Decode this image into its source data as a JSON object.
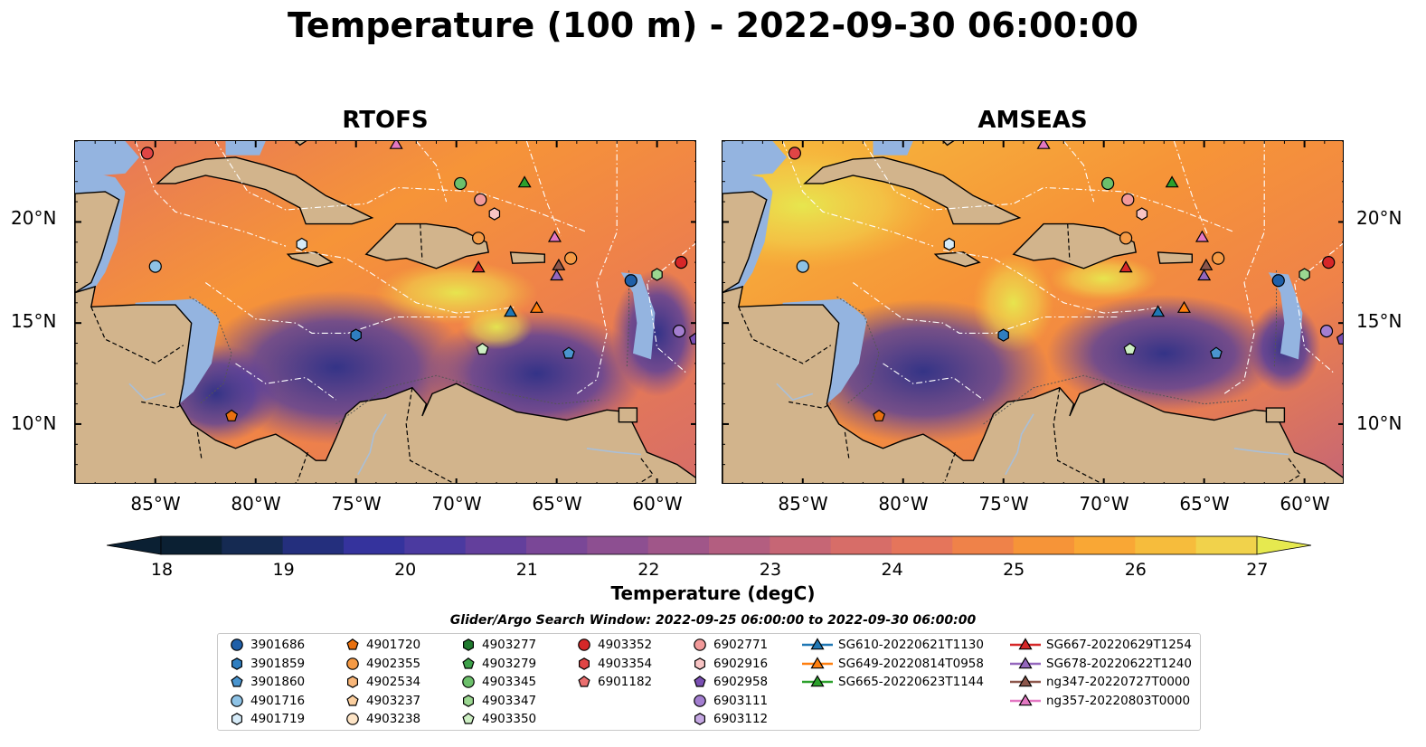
{
  "title": "Temperature (100 m) - 2022-09-30 06:00:00",
  "panels": [
    {
      "title": "RTOFS"
    },
    {
      "title": "AMSEAS"
    }
  ],
  "lat_labels": [
    "20°N",
    "15°N",
    "10°N"
  ],
  "lon_labels": [
    "85°W",
    "80°W",
    "75°W",
    "70°W",
    "65°W",
    "60°W"
  ],
  "map_extent": {
    "lon": [
      -89,
      -58
    ],
    "lat": [
      7,
      24
    ]
  },
  "colorbar": {
    "label": "Temperature (degC)",
    "ticks": [
      "18",
      "19",
      "20",
      "21",
      "22",
      "23",
      "24",
      "25",
      "26",
      "27"
    ],
    "range": [
      18,
      27
    ],
    "colors": [
      "#0b2033",
      "#152a52",
      "#242f7d",
      "#35339d",
      "#4b3aa0",
      "#633f9c",
      "#7a4797",
      "#8d4f91",
      "#a05689",
      "#b35e80",
      "#c66675",
      "#d76d68",
      "#e5755b",
      "#ef8249",
      "#f69438",
      "#f9a735",
      "#f6bc3c",
      "#f1d24b",
      "#e6e94f"
    ]
  },
  "search_window": "Glider/Argo Search Window: 2022-09-25 06:00:00 to 2022-09-30 06:00:00",
  "legend": [
    {
      "label": "3901686",
      "marker": "circle",
      "color": "#1f5fa8"
    },
    {
      "label": "3901859",
      "marker": "hexagon",
      "color": "#2f7ec0"
    },
    {
      "label": "3901860",
      "marker": "pentagon",
      "color": "#4a95cf"
    },
    {
      "label": "4901716",
      "marker": "circle",
      "color": "#8ec3e6"
    },
    {
      "label": "4901719",
      "marker": "hexagon",
      "color": "#d6ebf8"
    },
    {
      "label": "4901720",
      "marker": "pentagon",
      "color": "#e8700f"
    },
    {
      "label": "4902355",
      "marker": "circle",
      "color": "#f59a45"
    },
    {
      "label": "4902534",
      "marker": "hexagon",
      "color": "#f8b679"
    },
    {
      "label": "4903237",
      "marker": "pentagon",
      "color": "#fbcf9f"
    },
    {
      "label": "4903238",
      "marker": "circle",
      "color": "#fde4c6"
    },
    {
      "label": "4903277",
      "marker": "hexagon",
      "color": "#1f7a2e"
    },
    {
      "label": "4903279",
      "marker": "pentagon",
      "color": "#3ea14a"
    },
    {
      "label": "4903345",
      "marker": "circle",
      "color": "#6cc06b"
    },
    {
      "label": "4903347",
      "marker": "hexagon",
      "color": "#9bd791"
    },
    {
      "label": "4903350",
      "marker": "pentagon",
      "color": "#cdefc3"
    },
    {
      "label": "4903352",
      "marker": "circle",
      "color": "#d62728"
    },
    {
      "label": "4903354",
      "marker": "hexagon",
      "color": "#e04545"
    },
    {
      "label": "6901182",
      "marker": "pentagon",
      "color": "#ea6f6f"
    },
    {
      "label": "6902771",
      "marker": "circle",
      "color": "#f29a9a"
    },
    {
      "label": "6902916",
      "marker": "hexagon",
      "color": "#f8c4c4"
    },
    {
      "label": "6902958",
      "marker": "pentagon",
      "color": "#7a4fb3"
    },
    {
      "label": "6903111",
      "marker": "circle",
      "color": "#a37ed0"
    },
    {
      "label": "6903112",
      "marker": "hexagon",
      "color": "#c5a8e3"
    },
    {
      "label": "SG610-20220621T1130",
      "marker": "triangle-line",
      "color": "#1f77b4"
    },
    {
      "label": "SG649-20220814T0958",
      "marker": "triangle-line",
      "color": "#ff7f0e"
    },
    {
      "label": "SG665-20220623T1144",
      "marker": "triangle-line",
      "color": "#2ca02c"
    },
    {
      "label": "SG667-20220629T1254",
      "marker": "triangle-line",
      "color": "#d62728"
    },
    {
      "label": "SG678-20220622T1240",
      "marker": "triangle-line",
      "color": "#9467bd"
    },
    {
      "label": "ng347-20220727T0000",
      "marker": "triangle-line",
      "color": "#8c564b"
    },
    {
      "label": "ng357-20220803T0000",
      "marker": "triangle-line",
      "color": "#e377c2"
    }
  ],
  "map_markers": [
    {
      "lon": -85.4,
      "lat": 23.4,
      "marker": "circle",
      "color": "#e04545"
    },
    {
      "lon": -73.0,
      "lat": 23.8,
      "marker": "triangle",
      "color": "#e377c2"
    },
    {
      "lon": -69.8,
      "lat": 21.9,
      "marker": "circle",
      "color": "#6cc06b"
    },
    {
      "lon": -66.6,
      "lat": 21.9,
      "marker": "triangle",
      "color": "#2ca02c"
    },
    {
      "lon": -68.8,
      "lat": 21.1,
      "marker": "circle",
      "color": "#f29a9a"
    },
    {
      "lon": -68.1,
      "lat": 20.4,
      "marker": "hexagon",
      "color": "#f8c4c4"
    },
    {
      "lon": -68.9,
      "lat": 19.2,
      "marker": "circle",
      "color": "#f59a45"
    },
    {
      "lon": -65.1,
      "lat": 19.2,
      "marker": "triangle",
      "color": "#e377c2"
    },
    {
      "lon": -77.7,
      "lat": 18.9,
      "marker": "hexagon",
      "color": "#d6ebf8"
    },
    {
      "lon": -85.0,
      "lat": 17.8,
      "marker": "circle",
      "color": "#8ec3e6"
    },
    {
      "lon": -64.3,
      "lat": 18.2,
      "marker": "circle",
      "color": "#f59a45"
    },
    {
      "lon": -64.9,
      "lat": 17.8,
      "marker": "triangle",
      "color": "#8c564b"
    },
    {
      "lon": -68.9,
      "lat": 17.7,
      "marker": "triangle",
      "color": "#d62728"
    },
    {
      "lon": -65.0,
      "lat": 17.3,
      "marker": "triangle",
      "color": "#9467bd"
    },
    {
      "lon": -61.3,
      "lat": 17.1,
      "marker": "circle",
      "color": "#1f5fa8"
    },
    {
      "lon": -60.0,
      "lat": 17.4,
      "marker": "hexagon",
      "color": "#9bd791"
    },
    {
      "lon": -58.8,
      "lat": 18.0,
      "marker": "circle",
      "color": "#d62728"
    },
    {
      "lon": -67.3,
      "lat": 15.5,
      "marker": "triangle",
      "color": "#1f77b4"
    },
    {
      "lon": -66.0,
      "lat": 15.7,
      "marker": "triangle",
      "color": "#ff7f0e"
    },
    {
      "lon": -75.0,
      "lat": 14.4,
      "marker": "hexagon",
      "color": "#2f7ec0"
    },
    {
      "lon": -58.9,
      "lat": 14.6,
      "marker": "circle",
      "color": "#a37ed0"
    },
    {
      "lon": -58.1,
      "lat": 14.2,
      "marker": "pentagon",
      "color": "#7a4fb3"
    },
    {
      "lon": -68.7,
      "lat": 13.7,
      "marker": "pentagon",
      "color": "#cdefc3"
    },
    {
      "lon": -64.4,
      "lat": 13.5,
      "marker": "pentagon",
      "color": "#4a95cf"
    },
    {
      "lon": -81.2,
      "lat": 10.4,
      "marker": "pentagon",
      "color": "#e8700f"
    }
  ]
}
